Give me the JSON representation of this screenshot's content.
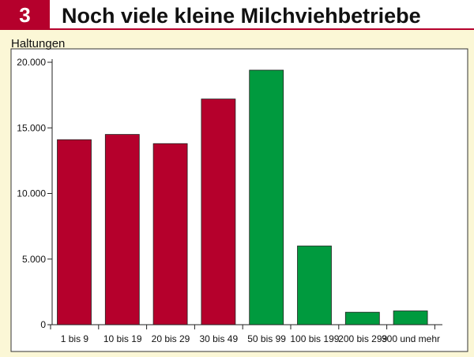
{
  "header": {
    "figure_number": "3",
    "title": "Noch viele kleine Milchviehbetriebe"
  },
  "colors": {
    "accent": "#b5002c",
    "series_small": "#b5002c",
    "series_large": "#009a3e",
    "background": "#fbf7d6"
  },
  "chart_data": {
    "type": "bar",
    "title": "Noch viele kleine Milchviehbetriebe",
    "ylabel": "Haltungen",
    "xlabel": "",
    "categories": [
      "1 bis 9",
      "10 bis 19",
      "20 bis 29",
      "30 bis 49",
      "50 bis 99",
      "100 bis 199",
      "200 bis 299",
      "300 und mehr"
    ],
    "values": [
      14100,
      14500,
      13800,
      17200,
      19400,
      6000,
      950,
      1050
    ],
    "bar_colors": [
      "#b5002c",
      "#b5002c",
      "#b5002c",
      "#b5002c",
      "#009a3e",
      "#009a3e",
      "#009a3e",
      "#009a3e"
    ],
    "ylim": [
      0,
      20000
    ],
    "yticks": [
      0,
      5000,
      10000,
      15000,
      20000
    ],
    "ytick_labels": [
      "0",
      "5.000",
      "10.000",
      "15.000",
      "20.000"
    ],
    "grid": false,
    "legend": "none"
  }
}
